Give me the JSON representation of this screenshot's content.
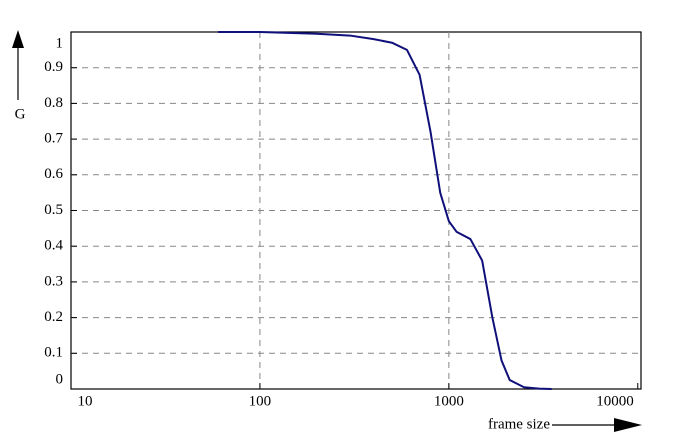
{
  "chart_data": {
    "type": "line",
    "x_label": "frame size",
    "y_label": "G",
    "x_scale": "log",
    "xlim": [
      10,
      10400
    ],
    "ylim": [
      0,
      1
    ],
    "xticks": [
      10,
      100,
      1000,
      10000
    ],
    "yticks": [
      0,
      0.1,
      0.2,
      0.3,
      0.4,
      0.5,
      0.6,
      0.7,
      0.8,
      0.9,
      1
    ],
    "grid": true,
    "series": [
      {
        "color": "#10107a",
        "x": [
          60,
          100,
          200,
          300,
          400,
          500,
          600,
          700,
          800,
          900,
          1000,
          1100,
          1300,
          1500,
          1700,
          1900,
          2100,
          2500,
          3000,
          3500
        ],
        "values": [
          1,
          1,
          0.995,
          0.99,
          0.98,
          0.97,
          0.95,
          0.88,
          0.72,
          0.55,
          0.47,
          0.44,
          0.42,
          0.36,
          0.2,
          0.08,
          0.025,
          0.005,
          0.001,
          0
        ]
      }
    ]
  }
}
